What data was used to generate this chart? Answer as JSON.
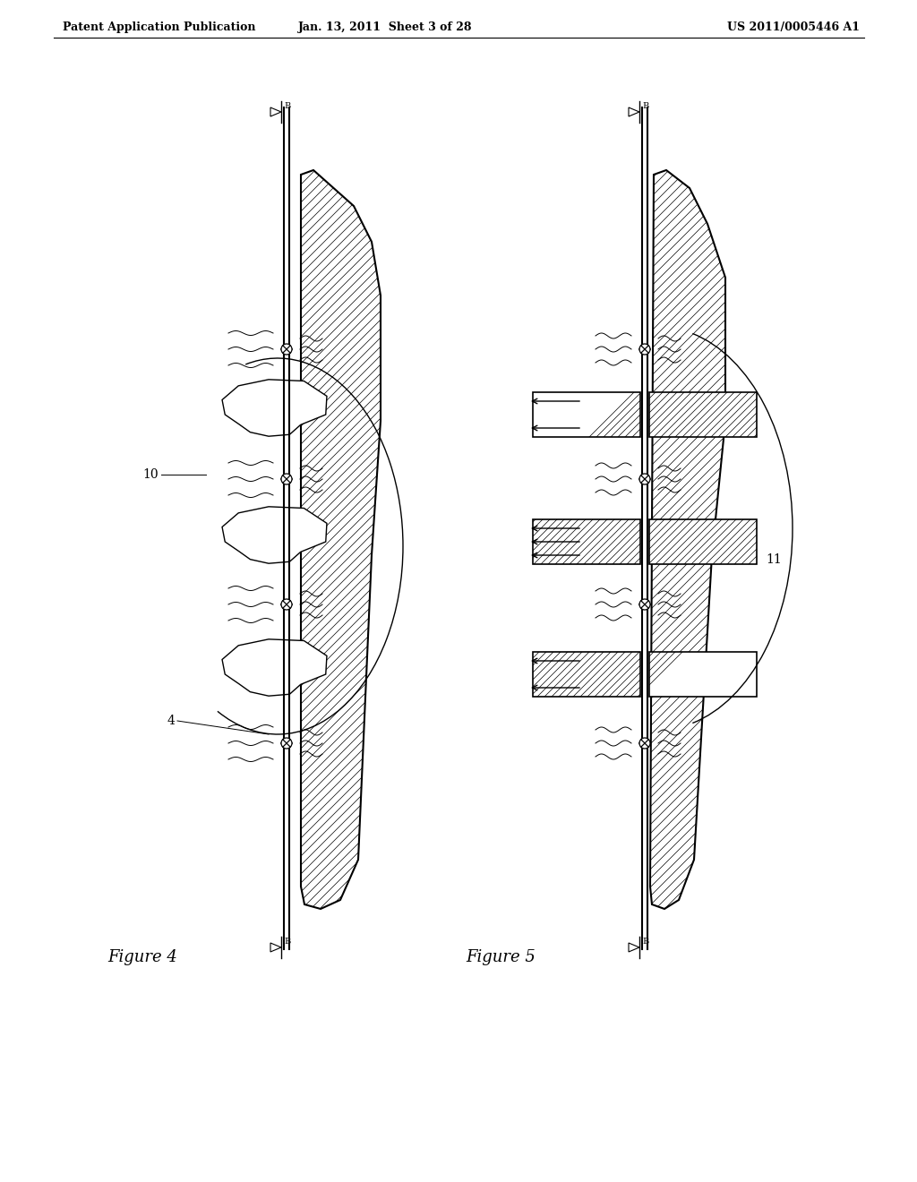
{
  "bg_color": "#ffffff",
  "header_left": "Patent Application Publication",
  "header_mid": "Jan. 13, 2011  Sheet 3 of 28",
  "header_right": "US 2011/0005446 A1",
  "fig4_label": "Figure 4",
  "fig5_label": "Figure 5",
  "label_10": "10",
  "label_4": "4",
  "label_11": "11"
}
